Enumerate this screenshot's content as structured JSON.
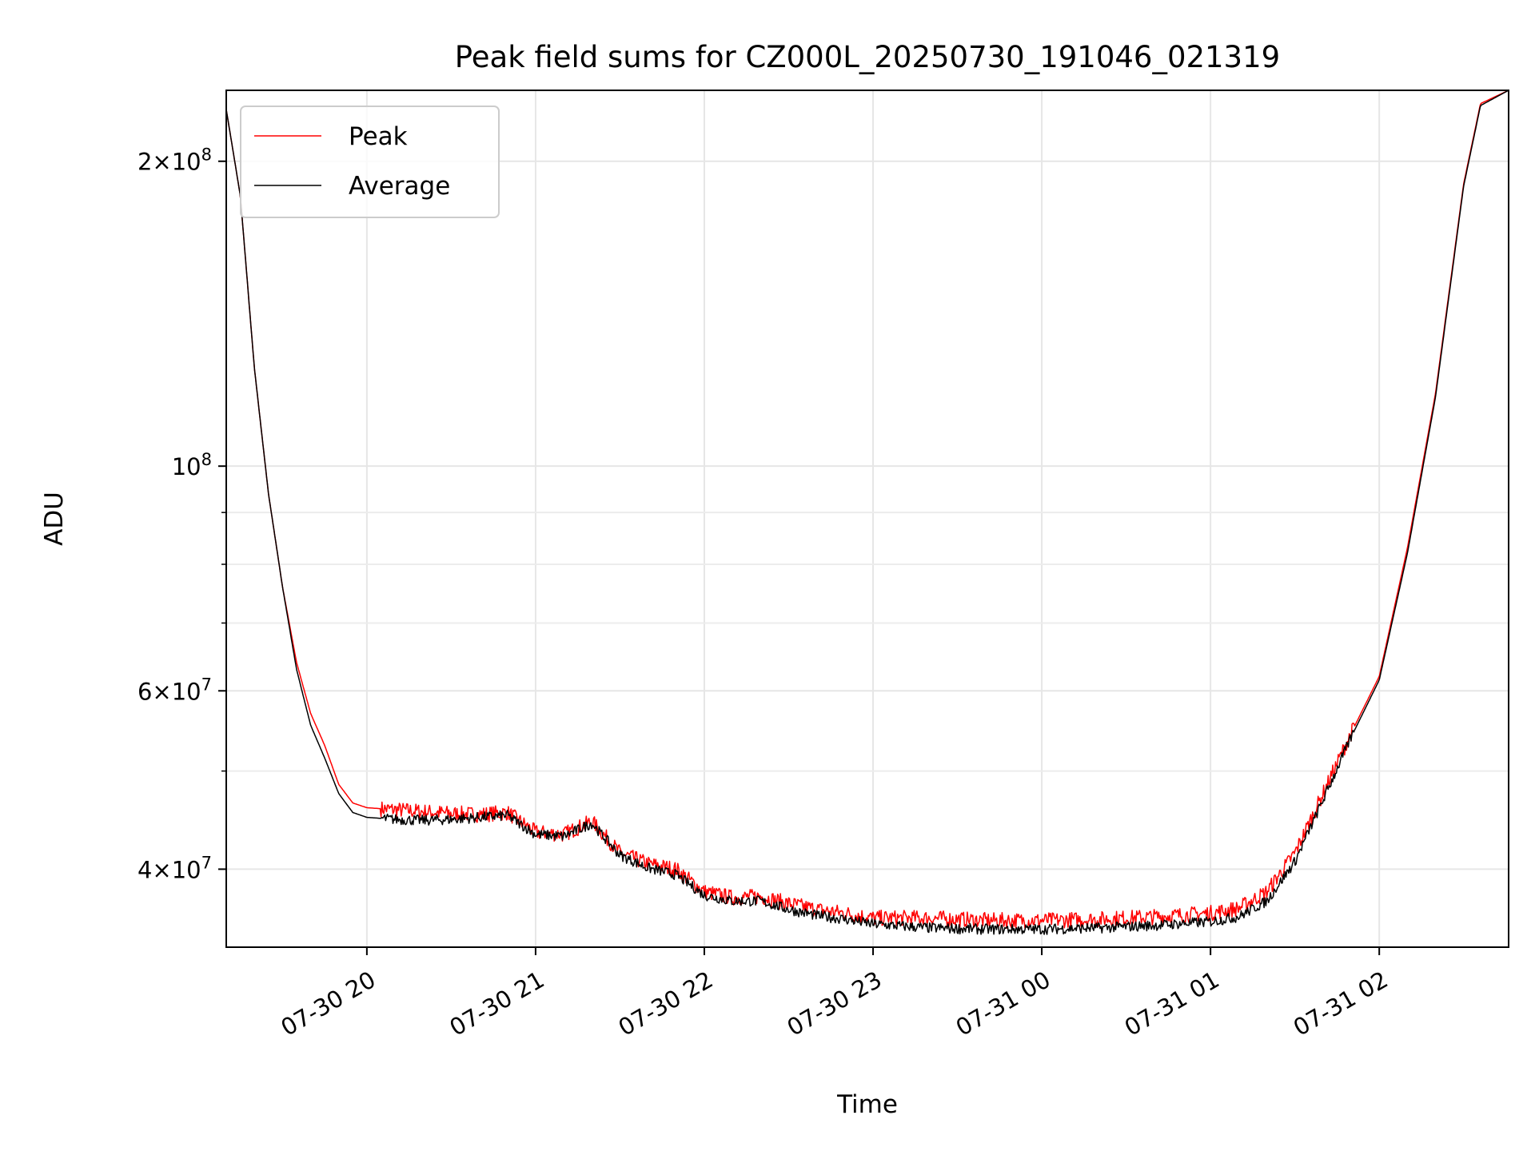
{
  "chart_data": {
    "type": "line",
    "title": "Peak field sums for CZ000L_20250730_191046_021319",
    "xlabel": "Time",
    "ylabel": "ADU",
    "x_range": [
      "2025-07-30 19:10",
      "2025-07-31 02:46"
    ],
    "ylim": [
      33500000,
      235000000
    ],
    "y_scale": "log",
    "grid": true,
    "legend_position": "top-left",
    "x_ticks": [
      "07-30 20",
      "07-30 21",
      "07-30 22",
      "07-30 23",
      "07-31 00",
      "07-31 01",
      "07-31 02"
    ],
    "y_ticks": [
      {
        "value": 40000000,
        "mantissa": "4",
        "exp": "7"
      },
      {
        "value": 60000000,
        "mantissa": "6",
        "exp": "7"
      },
      {
        "value": 100000000,
        "mantissa": "",
        "exp": "8"
      },
      {
        "value": 200000000,
        "mantissa": "2",
        "exp": "8"
      }
    ],
    "y_minor_ticks": [
      50000000,
      70000000,
      80000000,
      90000000
    ],
    "x": [
      "07-30 19:10",
      "07-30 19:15",
      "07-30 19:20",
      "07-30 19:25",
      "07-30 19:30",
      "07-30 19:35",
      "07-30 19:40",
      "07-30 19:45",
      "07-30 19:50",
      "07-30 19:55",
      "07-30 20:00",
      "07-30 20:10",
      "07-30 20:20",
      "07-30 20:30",
      "07-30 20:40",
      "07-30 20:50",
      "07-30 21:00",
      "07-30 21:10",
      "07-30 21:20",
      "07-30 21:30",
      "07-30 21:40",
      "07-30 21:50",
      "07-30 22:00",
      "07-30 22:10",
      "07-30 22:20",
      "07-30 22:30",
      "07-30 22:40",
      "07-30 22:50",
      "07-30 23:00",
      "07-30 23:20",
      "07-30 23:40",
      "07-31 00:00",
      "07-31 00:20",
      "07-31 00:40",
      "07-31 01:00",
      "07-31 01:10",
      "07-31 01:20",
      "07-31 01:30",
      "07-31 01:40",
      "07-31 01:50",
      "07-31 02:00",
      "07-31 02:10",
      "07-31 02:20",
      "07-31 02:30",
      "07-31 02:36",
      "07-31 02:46"
    ],
    "series": [
      {
        "name": "Peak",
        "color": "#ff0000",
        "values": [
          225000000,
          185000000,
          125000000,
          94000000,
          76000000,
          64000000,
          57000000,
          53000000,
          48500000,
          46500000,
          46000000,
          45800000,
          45600000,
          45400000,
          45300000,
          45500000,
          43500000,
          43300000,
          44600000,
          41500000,
          40500000,
          40000000,
          38000000,
          37500000,
          37600000,
          37000000,
          36500000,
          36200000,
          35800000,
          35800000,
          35600000,
          35600000,
          35700000,
          35900000,
          36200000,
          36600000,
          38000000,
          41500000,
          47500000,
          54500000,
          62000000,
          83000000,
          118000000,
          190000000,
          228000000,
          235000000
        ]
      },
      {
        "name": "Average",
        "color": "#000000",
        "values": [
          225000000,
          185000000,
          125000000,
          94000000,
          76000000,
          63000000,
          55500000,
          51500000,
          47500000,
          45500000,
          45000000,
          44800000,
          44700000,
          44800000,
          45000000,
          45200000,
          43300000,
          43100000,
          44400000,
          41300000,
          40100000,
          39500000,
          37700000,
          37200000,
          37200000,
          36500000,
          36000000,
          35700000,
          35300000,
          35000000,
          34900000,
          34900000,
          35000000,
          35200000,
          35500000,
          35900000,
          37200000,
          40700000,
          46800000,
          54000000,
          61500000,
          82000000,
          117000000,
          189000000,
          227000000,
          235000000
        ]
      }
    ]
  }
}
